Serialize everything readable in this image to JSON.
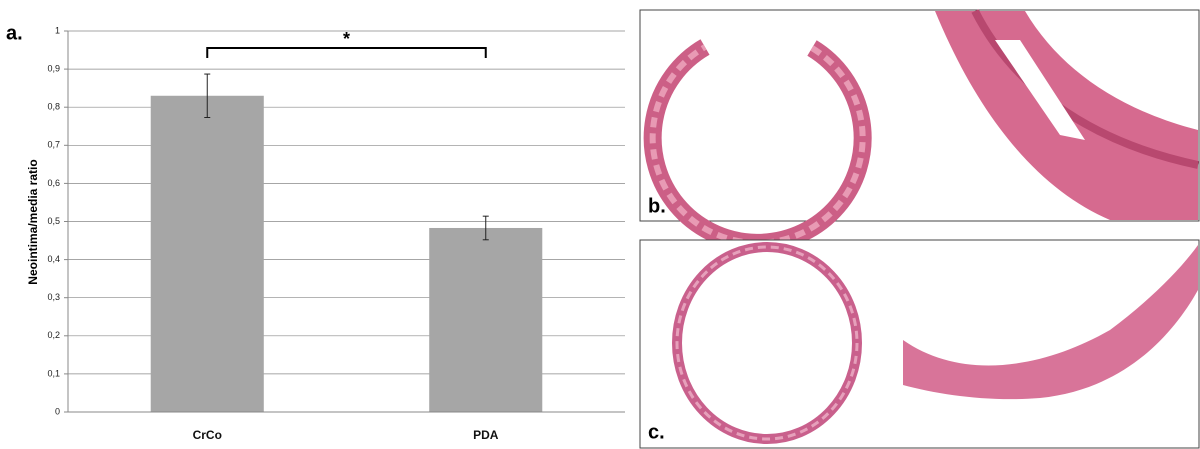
{
  "chart_data": {
    "type": "bar",
    "panel_label": "a.",
    "ylabel": "Neointima/media ratio",
    "categories": [
      "CrCo",
      "PDA"
    ],
    "values": [
      0.83,
      0.483
    ],
    "errors": [
      0.057,
      0.031
    ],
    "color": "#a6a6a6",
    "annotation": "*",
    "ylim": [
      0,
      1
    ],
    "yticks": [
      0,
      {
        "value": 0.1,
        "label": "0,1"
      },
      {
        "value": 0.2,
        "label": "0,2"
      },
      {
        "value": 0.3,
        "label": "0,3"
      },
      {
        "value": 0.4,
        "label": "0,4"
      },
      {
        "value": 0.5,
        "label": "0,5"
      },
      {
        "value": 0.6,
        "label": "0,6"
      },
      {
        "value": 0.7,
        "label": "0,7"
      },
      {
        "value": 0.8,
        "label": "0,8"
      },
      {
        "value": 0.9,
        "label": "0,9"
      },
      1
    ],
    "grid": true
  },
  "images": [
    {
      "label": "b."
    },
    {
      "label": "c."
    }
  ]
}
